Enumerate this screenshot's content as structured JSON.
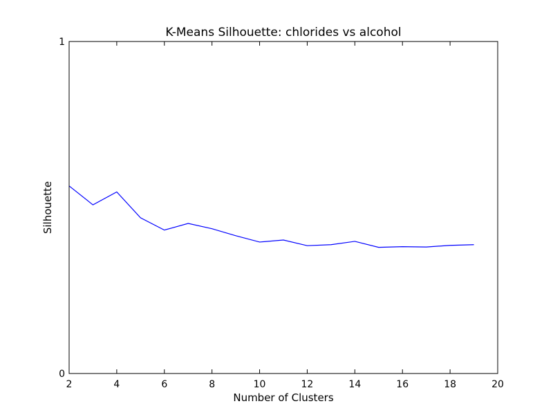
{
  "chart_data": {
    "type": "line",
    "title": "K-Means Silhouette: chlorides vs alcohol",
    "xlabel": "Number of Clusters",
    "ylabel": "Silhouette",
    "xlim": [
      2,
      20
    ],
    "ylim": [
      0,
      1
    ],
    "xticks": [
      2,
      4,
      6,
      8,
      10,
      12,
      14,
      16,
      18,
      20
    ],
    "yticks": [
      0,
      1
    ],
    "grid": false,
    "line_color": "#0000ff",
    "series": [
      {
        "x": [
          2,
          3,
          4,
          5,
          6,
          7,
          8,
          9,
          10,
          11,
          12,
          13,
          14,
          15,
          16,
          17,
          18,
          19
        ],
        "values": [
          0.565,
          0.508,
          0.547,
          0.469,
          0.432,
          0.452,
          0.436,
          0.415,
          0.396,
          0.402,
          0.385,
          0.388,
          0.398,
          0.38,
          0.382,
          0.381,
          0.386,
          0.388
        ]
      }
    ]
  }
}
